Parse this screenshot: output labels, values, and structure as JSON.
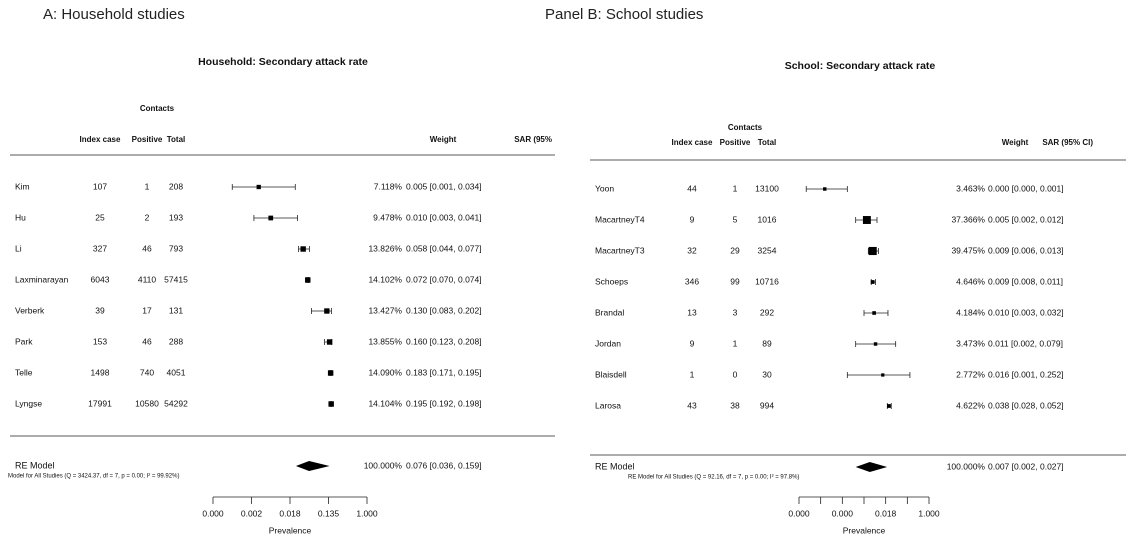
{
  "chart_data": [
    {
      "type": "forest",
      "panel_title": "A: Household studies",
      "title": "Household: Secondary attack rate",
      "group_header": "Contacts",
      "headers": [
        "Index case",
        "Positive",
        "Total"
      ],
      "weight_header": "Weight",
      "sar_header": "SAR (95%",
      "studies": [
        "Kim",
        "Hu",
        "Li",
        "Laxminarayan",
        "Verberk",
        "Park",
        "Telle",
        "Lyngse"
      ],
      "index_case": [
        107,
        25,
        327,
        6043,
        39,
        153,
        1498,
        17991
      ],
      "positive": [
        1,
        2,
        46,
        4110,
        17,
        46,
        740,
        10580
      ],
      "total": [
        208,
        193,
        793,
        57415,
        131,
        288,
        4051,
        54292
      ],
      "weights": [
        7.118,
        9.478,
        13.826,
        14.102,
        13.427,
        13.855,
        14.09,
        14.104
      ],
      "weight_labels": [
        "7.118%",
        "9.478%",
        "13.826%",
        "14.102%",
        "13.427%",
        "13.855%",
        "14.090%",
        "14.104%"
      ],
      "estimates": [
        0.005,
        0.01,
        0.058,
        0.072,
        0.13,
        0.16,
        0.183,
        0.195
      ],
      "ci_low": [
        0.001,
        0.003,
        0.044,
        0.07,
        0.083,
        0.123,
        0.171,
        0.192
      ],
      "ci_high": [
        0.034,
        0.041,
        0.077,
        0.074,
        0.202,
        0.208,
        0.195,
        0.198
      ],
      "sar_labels": [
        "0.005 [0.001, 0.034]",
        "0.010 [0.003, 0.041]",
        "0.058 [0.044, 0.077]",
        "0.072 [0.070, 0.074]",
        "0.130 [0.083, 0.202]",
        "0.160 [0.123, 0.208]",
        "0.183 [0.171, 0.195]",
        "0.195 [0.192, 0.198]"
      ],
      "summary": {
        "label": "RE Model",
        "note": "Model for All Studies (Q = 3424.37, df = 7, p = 0.00; I² = 99.92%)",
        "weight_label": "100.000%",
        "estimate": 0.076,
        "ci_low": 0.036,
        "ci_high": 0.159,
        "sar_label": "0.076 [0.036, 0.159]"
      },
      "xlabel": "Prevalence",
      "xticks": [
        {
          "value": 0,
          "label": "0.000"
        },
        0.002,
        0.018,
        0.135,
        {
          "value": 1,
          "label": "1.000"
        }
      ],
      "minor_xticks": []
    },
    {
      "type": "forest",
      "panel_title": "Panel B: School studies",
      "title": "School: Secondary attack rate",
      "group_header": "Contacts",
      "headers": [
        "Index case",
        "Positive",
        "Total"
      ],
      "weight_header": "Weight",
      "sar_header": "SAR (95% CI)",
      "studies": [
        "Yoon",
        "MacartneyT4",
        "MacartneyT3",
        "Schoeps",
        "Brandal",
        "Jordan",
        "Blaisdell",
        "Larosa"
      ],
      "index_case": [
        44,
        9,
        32,
        346,
        13,
        9,
        1,
        43
      ],
      "positive": [
        1,
        5,
        29,
        99,
        3,
        1,
        0,
        38
      ],
      "total": [
        13100,
        1016,
        3254,
        10716,
        292,
        89,
        30,
        994
      ],
      "weights": [
        3.463,
        37.366,
        39.475,
        4.646,
        4.184,
        3.473,
        2.772,
        4.622
      ],
      "weight_labels": [
        "3.463%",
        "37.366%",
        "39.475%",
        "4.646%",
        "4.184%",
        "3.473%",
        "2.772%",
        "4.622%"
      ],
      "estimates": [
        0.0001,
        0.005,
        0.009,
        0.009,
        0.01,
        0.011,
        0.016,
        0.038
      ],
      "ci_low": [
        1e-05,
        0.002,
        0.006,
        0.008,
        0.003,
        0.002,
        0.001,
        0.028
      ],
      "ci_high": [
        0.001,
        0.012,
        0.013,
        0.011,
        0.032,
        0.079,
        0.252,
        0.052
      ],
      "sar_labels": [
        "0.000 [0.000, 0.001]",
        "0.005 [0.002, 0.012]",
        "0.009 [0.006, 0.013]",
        "0.009 [0.008, 0.011]",
        "0.010 [0.003, 0.032]",
        "0.011 [0.002, 0.079]",
        "0.016 [0.001, 0.252]",
        "0.038 [0.028, 0.052]"
      ],
      "summary": {
        "label": "RE Model",
        "note": "RE Model for All Studies (Q = 92.16, df = 7, p = 0.00; I² = 97.8%)",
        "weight_label": "100.000%",
        "estimate": 0.007,
        "ci_low": 0.002,
        "ci_high": 0.027,
        "sar_label": "0.007 [0.002, 0.027]"
      },
      "xlabel": "Prevalence",
      "xticks": [
        {
          "value": 0,
          "label": "0.000"
        },
        {
          "value": 0.0004,
          "label": "0.000"
        },
        0.018,
        {
          "value": 1,
          "label": "1.000"
        }
      ],
      "minor_xticks": [
        3e-05,
        0.003,
        0.15
      ]
    }
  ]
}
